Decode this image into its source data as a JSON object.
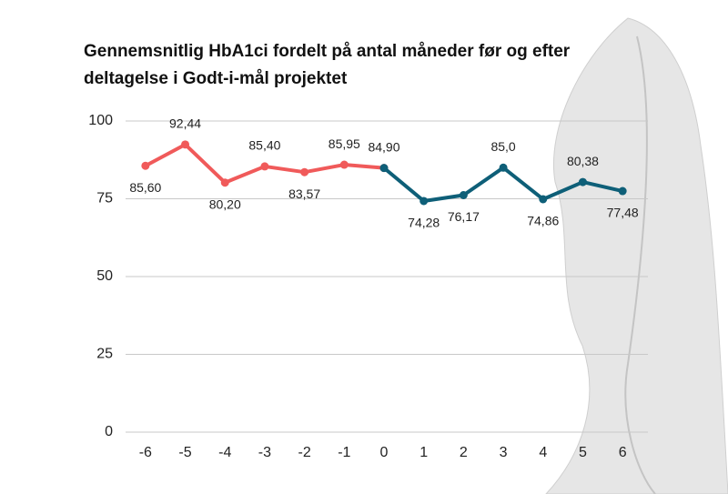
{
  "chart_data": {
    "type": "line",
    "title": "Gennemsnitlig HbA1ci fordelt på antal måneder før og efter deltagelse i Godt-i-mål projektet",
    "series": [
      {
        "color": "#f05a5a",
        "x": [
          -6,
          -5,
          -4,
          -3,
          -2,
          -1,
          0
        ],
        "values": [
          85.6,
          92.44,
          80.2,
          85.4,
          83.57,
          85.95,
          84.9
        ],
        "value_labels": [
          "85,60",
          "92,44",
          "80,20",
          "85,40",
          "83,57",
          "85,95",
          "84,90"
        ]
      },
      {
        "color": "#0e5f78",
        "x": [
          0,
          1,
          2,
          3,
          4,
          5,
          6
        ],
        "values": [
          84.9,
          74.28,
          76.17,
          85,
          74.86,
          80.38,
          77.48
        ],
        "value_labels": [
          null,
          "74,28",
          "76,17",
          "85,0",
          "74,86",
          "80,38",
          "77,48"
        ]
      }
    ],
    "xlim": [
      -6.5,
      6.5
    ],
    "xticks": [
      -6,
      -5,
      -4,
      -3,
      -2,
      -1,
      0,
      1,
      2,
      3,
      4,
      5,
      6
    ],
    "ylim": [
      0,
      100
    ],
    "yticks": [
      0,
      25,
      50,
      75,
      100
    ],
    "grid": true
  }
}
